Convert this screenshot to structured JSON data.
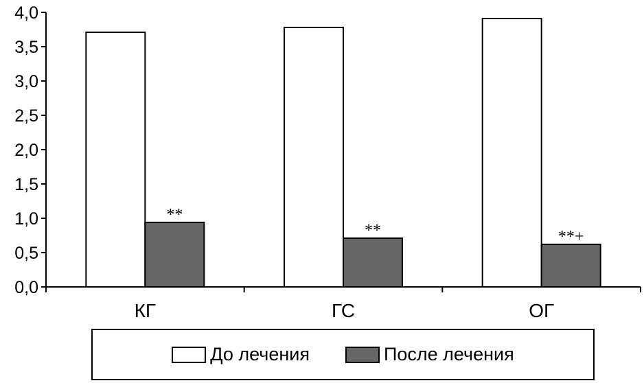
{
  "chart_data": {
    "type": "bar",
    "categories": [
      "КГ",
      "ГС",
      "ОГ"
    ],
    "series": [
      {
        "name": "До лечения",
        "values": [
          3.71,
          3.78,
          3.91
        ],
        "color": "#ffffff"
      },
      {
        "name": "После лечения",
        "values": [
          0.94,
          0.71,
          0.62
        ],
        "color": "#666666"
      }
    ],
    "annotations": [
      "**",
      "**",
      "**+"
    ],
    "y_ticks": [
      "0,0",
      "0,5",
      "1,0",
      "1,5",
      "2,0",
      "2,5",
      "3,0",
      "3,5",
      "4,0"
    ],
    "ylim": [
      0,
      4
    ],
    "xlabel": "",
    "ylabel": "",
    "grid": false,
    "legend_position": "bottom"
  }
}
